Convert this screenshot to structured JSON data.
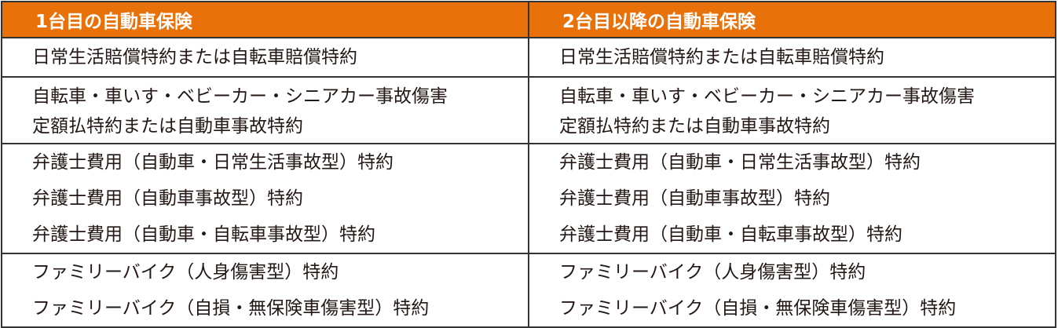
{
  "colors": {
    "header_bg": "#E8710A",
    "border": "#333333",
    "text": "#231815"
  },
  "headers": [
    "1台目の自動車保険",
    "2台目以降の自動車保険"
  ],
  "rows": [
    {
      "left": [
        "日常生活賠償特約または自転車賠償特約"
      ],
      "right": [
        "日常生活賠償特約または自転車賠償特約"
      ]
    },
    {
      "left": [
        "自転車・車いす・ベビーカー・シニアカー事故傷害",
        "定額払特約または自動車事故特約"
      ],
      "right": [
        "自転車・車いす・ベビーカー・シニアカー事故傷害",
        "定額払特約または自動車事故特約"
      ]
    },
    {
      "left": [
        "弁護士費用（自動車・日常生活事故型）特約",
        "弁護士費用（自動車事故型）特約",
        "弁護士費用（自動車・自転車事故型）特約"
      ],
      "right": [
        "弁護士費用（自動車・日常生活事故型）特約",
        "弁護士費用（自動車事故型）特約",
        "弁護士費用（自動車・自転車事故型）特約"
      ]
    },
    {
      "left": [
        "ファミリーバイク（人身傷害型）特約",
        "ファミリーバイク（自損・無保険車傷害型）特約"
      ],
      "right": [
        "ファミリーバイク（人身傷害型）特約",
        "ファミリーバイク（自損・無保険車傷害型）特約"
      ]
    }
  ]
}
